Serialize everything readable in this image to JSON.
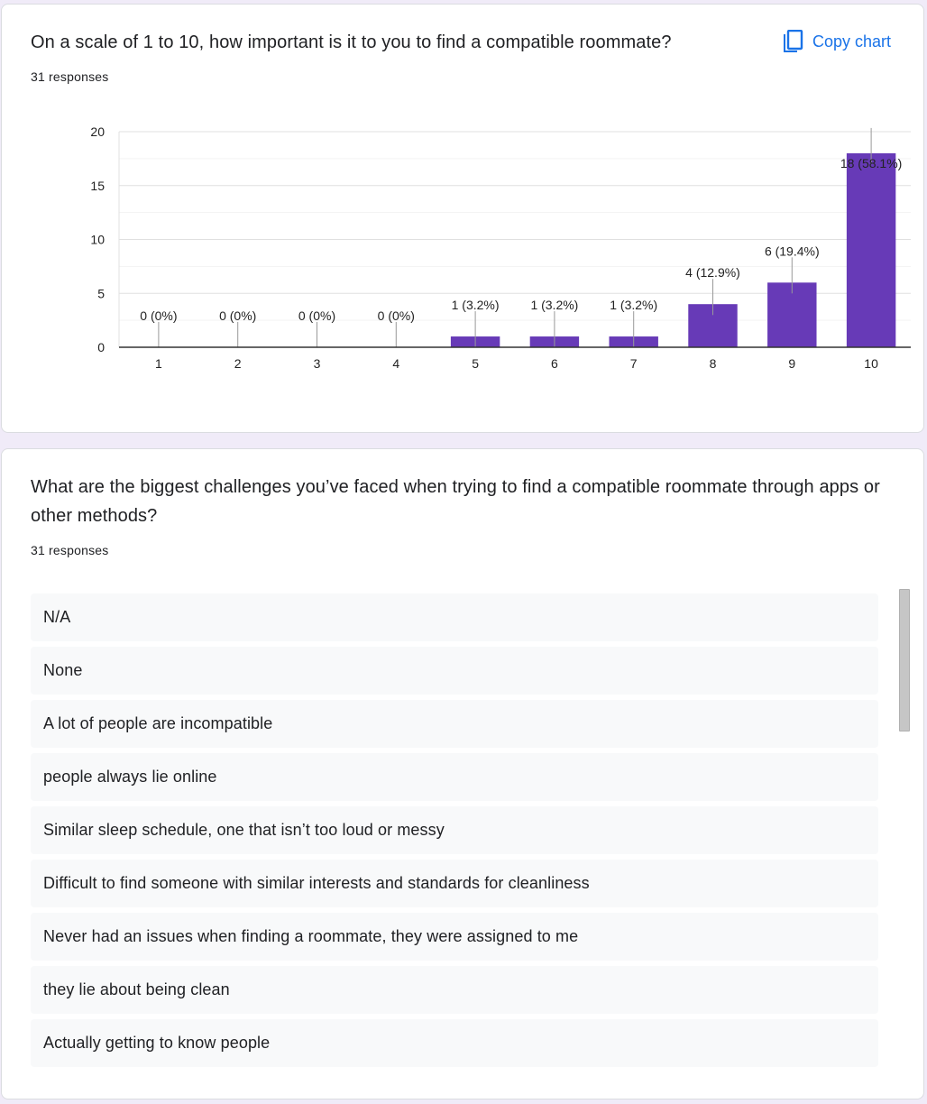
{
  "card1": {
    "question": "On a scale of 1 to 10, how important is it to you to find a compatible roommate?",
    "responses": "31 responses",
    "copy_label": "Copy chart"
  },
  "chart_data": {
    "type": "bar",
    "categories": [
      "1",
      "2",
      "3",
      "4",
      "5",
      "6",
      "7",
      "8",
      "9",
      "10"
    ],
    "values": [
      0,
      0,
      0,
      0,
      1,
      1,
      1,
      4,
      6,
      18
    ],
    "data_labels": [
      "0 (0%)",
      "0 (0%)",
      "0 (0%)",
      "0 (0%)",
      "1 (3.2%)",
      "1 (3.2%)",
      "1 (3.2%)",
      "4 (12.9%)",
      "6 (19.4%)",
      "18 (58.1%)"
    ],
    "y_ticks": [
      "0",
      "5",
      "10",
      "15",
      "20"
    ],
    "ylim": [
      0,
      20
    ],
    "grid": true,
    "bar_color": "#673ab7"
  },
  "card2": {
    "question": "What are the biggest challenges you’ve faced when trying to find a compatible roommate through apps or other methods?",
    "responses": "31 responses",
    "answers": [
      "N/A",
      "None",
      "A lot of people are incompatible",
      "people always lie online",
      "Similar sleep schedule, one that isn’t too loud or messy",
      "Difficult to find someone with similar interests and standards for cleanliness",
      "Never had an issues when finding a roommate, they were assigned to me",
      "they lie about being clean",
      "Actually getting to know people"
    ]
  }
}
